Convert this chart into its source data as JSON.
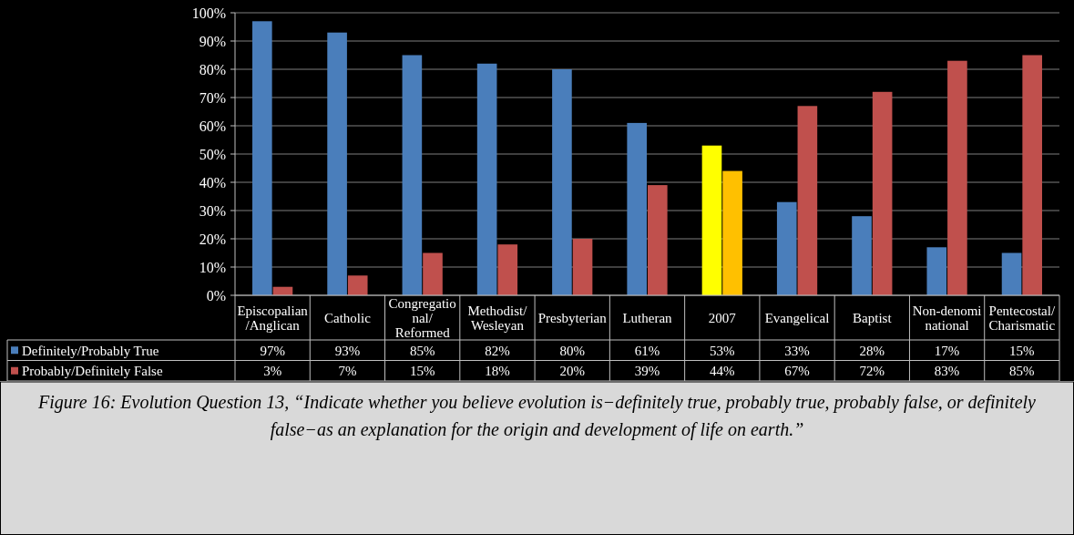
{
  "chart_data": {
    "type": "bar",
    "categories": [
      "Episcopalian/Anglican",
      "Catholic",
      "Congregational/ Reformed",
      "Methodist/Wesleyan",
      "Presbyterian",
      "Lutheran",
      "2007",
      "Evangelical",
      "Baptist",
      "Non-denominational",
      "Pentecostal/Charismatic"
    ],
    "series": [
      {
        "name": "Definitely/Probably True",
        "color": "#4a7ebb",
        "colors": [
          "#4a7ebb",
          "#4a7ebb",
          "#4a7ebb",
          "#4a7ebb",
          "#4a7ebb",
          "#4a7ebb",
          "#ffff00",
          "#4a7ebb",
          "#4a7ebb",
          "#4a7ebb",
          "#4a7ebb"
        ],
        "values": [
          97,
          93,
          85,
          82,
          80,
          61,
          53,
          33,
          28,
          17,
          15
        ],
        "value_labels": [
          "97%",
          "93%",
          "85%",
          "82%",
          "80%",
          "61%",
          "53%",
          "33%",
          "28%",
          "17%",
          "15%"
        ]
      },
      {
        "name": "Probably/Definitely False",
        "color": "#c0504d",
        "colors": [
          "#c0504d",
          "#c0504d",
          "#c0504d",
          "#c0504d",
          "#c0504d",
          "#c0504d",
          "#ffc000",
          "#c0504d",
          "#c0504d",
          "#c0504d",
          "#c0504d"
        ],
        "values": [
          3,
          7,
          15,
          18,
          20,
          39,
          44,
          67,
          72,
          83,
          85
        ],
        "value_labels": [
          "3%",
          "7%",
          "15%",
          "18%",
          "20%",
          "39%",
          "44%",
          "67%",
          "72%",
          "83%",
          "85%"
        ]
      }
    ],
    "ylim": [
      0,
      100
    ],
    "yticks": [
      {
        "value": 0,
        "label": "0%"
      },
      {
        "value": 10,
        "label": "10%"
      },
      {
        "value": 20,
        "label": "20%"
      },
      {
        "value": 30,
        "label": "30%"
      },
      {
        "value": 40,
        "label": "40%"
      },
      {
        "value": 50,
        "label": "50%"
      },
      {
        "value": 60,
        "label": "60%"
      },
      {
        "value": 70,
        "label": "70%"
      },
      {
        "value": 80,
        "label": "80%"
      },
      {
        "value": 90,
        "label": "90%"
      },
      {
        "value": 100,
        "label": "100%"
      }
    ],
    "grid": true,
    "legend": "bottom left",
    "annotations": [
      "Figure 16: Evolution Question 13, “Indicate whether you believe evolution is−definitely true, probably true, probably false, or definitely false−as an explanation for the origin and development of life on earth.”"
    ]
  }
}
